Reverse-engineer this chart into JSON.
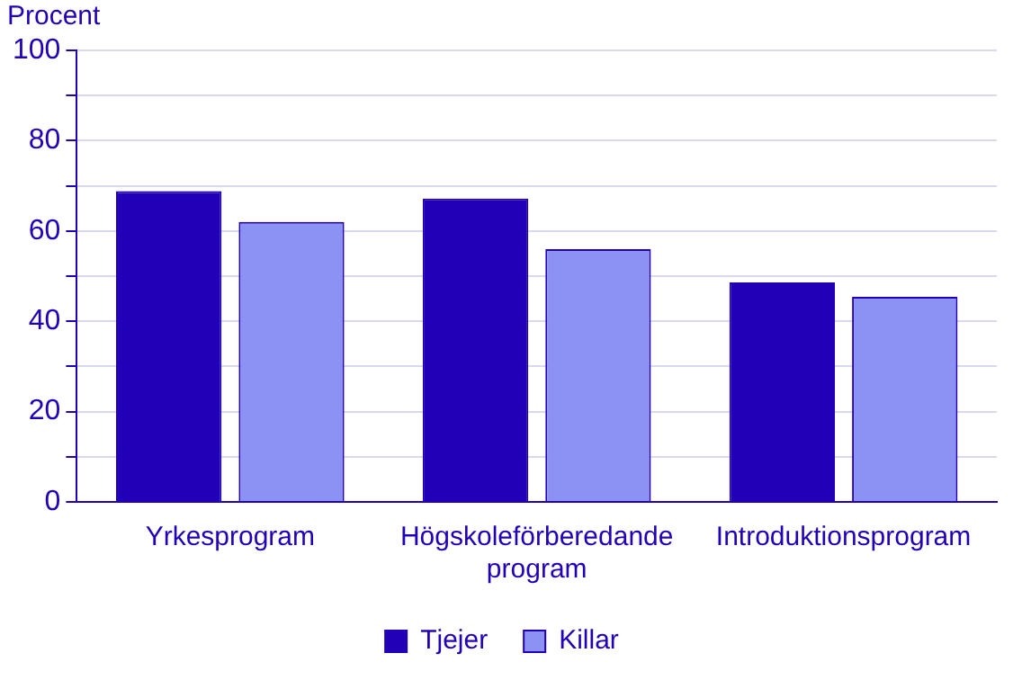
{
  "chart_data": {
    "type": "bar",
    "ylabel": "Procent",
    "categories": [
      "Yrkesprogram",
      "Högskoleförberedande program",
      "Introduktionsprogram"
    ],
    "series": [
      {
        "name": "Tjejer",
        "color": "#2200b8",
        "values": [
          68.8,
          67.2,
          48.6
        ]
      },
      {
        "name": "Killar",
        "color": "#8c91f4",
        "values": [
          62.0,
          56.0,
          45.4
        ]
      }
    ],
    "ylim": [
      0,
      100
    ],
    "yticks": [
      0,
      {
        "value": 10,
        "label": null
      },
      20,
      {
        "value": 30,
        "label": null
      },
      40,
      {
        "value": 50,
        "label": null
      },
      60,
      {
        "value": 70,
        "label": null
      },
      80,
      {
        "value": 90,
        "label": null
      },
      100
    ],
    "grid": "y",
    "legend": "bottom"
  }
}
